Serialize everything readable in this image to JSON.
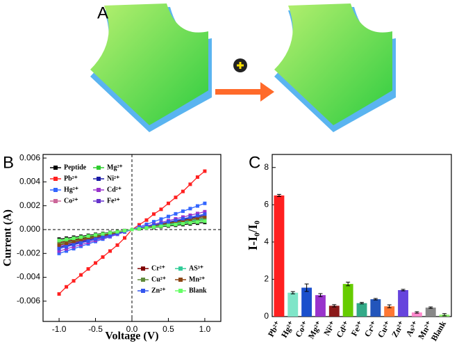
{
  "panels": [
    "A",
    "B",
    "C"
  ],
  "chart_data": [
    {
      "type": "line",
      "x_label": "Voltage (V)",
      "y_label": "Current (A)",
      "x": [
        -1,
        -0.9,
        -0.8,
        -0.7,
        -0.6,
        -0.5,
        -0.4,
        -0.3,
        -0.2,
        -0.1,
        0,
        0.1,
        0.2,
        0.3,
        0.4,
        0.5,
        0.6,
        0.7,
        0.8,
        0.9,
        1
      ],
      "xlim": [
        -1.22,
        1.22
      ],
      "xticks": [
        {
          "value": -1,
          "label": "-1.0"
        },
        -0.5,
        {
          "value": 0,
          "label": "0.0"
        },
        0.5,
        {
          "value": 1,
          "label": "1.0"
        }
      ],
      "ylim": [
        -0.0077,
        0.0063
      ],
      "yticks": [
        -0.006,
        -0.004,
        -0.002,
        {
          "value": 0,
          "label": "0.000"
        },
        0.002,
        0.004,
        0.006
      ],
      "series": [
        {
          "name": "Peptide",
          "color": "#000000",
          "values": [
            -0.0008,
            -0.00072,
            -0.00064,
            -0.00056,
            -0.00048,
            -0.0004,
            -0.00032,
            -0.00024,
            -0.00016,
            -8e-05,
            0,
            6e-05,
            0.00012,
            0.00018,
            0.00024,
            0.0003,
            0.00036,
            0.00042,
            0.00048,
            0.00054,
            0.0006
          ]
        },
        {
          "name": "Mg²⁺",
          "color": "#2ecc2e",
          "values": [
            -0.001,
            -0.0009,
            -0.0008,
            -0.0007,
            -0.0006,
            -0.0005,
            -0.0004,
            -0.0003,
            -0.0002,
            -0.0001,
            0,
            8e-05,
            0.00016,
            0.00024,
            0.00032,
            0.0004,
            0.00048,
            0.00056,
            0.00064,
            0.00072,
            0.0008
          ]
        },
        {
          "name": "Pb²⁺",
          "color": "#ff2020",
          "values": [
            -0.0054,
            -0.0048,
            -0.0043,
            -0.0038,
            -0.0033,
            -0.0028,
            -0.0023,
            -0.0018,
            -0.0013,
            -0.0007,
            0,
            0.0004,
            0.0008,
            0.0013,
            0.0017,
            0.0022,
            0.0027,
            0.0032,
            0.0038,
            0.0044,
            0.0049
          ]
        },
        {
          "name": "Ni²⁺",
          "color": "#1a1aa6",
          "values": [
            -0.0015,
            -0.00135,
            -0.0012,
            -0.00105,
            -0.0009,
            -0.00075,
            -0.0006,
            -0.00045,
            -0.0003,
            -0.00015,
            0,
            0.00012,
            0.00024,
            0.00036,
            0.00048,
            0.0006,
            0.00072,
            0.00084,
            0.00096,
            0.00108,
            0.0012
          ]
        },
        {
          "name": "Hg²⁺",
          "color": "#3366ff",
          "values": [
            -0.002,
            -0.0018,
            -0.0016,
            -0.0014,
            -0.0012,
            -0.001,
            -0.0008,
            -0.0006,
            -0.0004,
            -0.0002,
            0,
            0.00022,
            0.00044,
            0.00066,
            0.00088,
            0.0011,
            0.00132,
            0.00154,
            0.00176,
            0.00198,
            0.0022
          ]
        },
        {
          "name": "Cd²⁺",
          "color": "#9933cc",
          "values": [
            -0.0018,
            -0.00162,
            -0.00144,
            -0.00126,
            -0.00108,
            -0.0009,
            -0.00072,
            -0.00054,
            -0.00036,
            -0.00018,
            0,
            0.00015,
            0.0003,
            0.00045,
            0.0006,
            0.00075,
            0.0009,
            0.00105,
            0.0012,
            0.00135,
            0.0015
          ]
        },
        {
          "name": "Co²⁺",
          "color": "#cc6699",
          "values": [
            -0.0013,
            -0.00117,
            -0.00104,
            -0.00091,
            -0.00078,
            -0.00065,
            -0.00052,
            -0.00039,
            -0.00026,
            -0.00013,
            0,
            0.0001,
            0.0002,
            0.0003,
            0.0004,
            0.0005,
            0.0006,
            0.0007,
            0.0008,
            0.0009,
            0.001
          ]
        },
        {
          "name": "Fe³⁺",
          "color": "#6633cc",
          "values": [
            -0.0014,
            -0.00126,
            -0.00112,
            -0.00098,
            -0.00084,
            -0.0007,
            -0.00056,
            -0.00042,
            -0.00028,
            -0.00014,
            0,
            0.00011,
            0.00022,
            0.00033,
            0.00044,
            0.00055,
            0.00066,
            0.00077,
            0.00088,
            0.00099,
            0.0011
          ]
        },
        {
          "name": "Cr²⁺",
          "color": "#800000",
          "values": [
            -0.0011,
            -0.00099,
            -0.00088,
            -0.00077,
            -0.00066,
            -0.00055,
            -0.00044,
            -0.00033,
            -0.00022,
            -0.00011,
            0,
            9e-05,
            0.00018,
            0.00027,
            0.00036,
            0.00045,
            0.00054,
            0.00063,
            0.00072,
            0.00081,
            0.0009
          ]
        },
        {
          "name": "AS³⁺",
          "color": "#33cc99",
          "values": [
            -0.0012,
            -0.00108,
            -0.00096,
            -0.00084,
            -0.00072,
            -0.0006,
            -0.00048,
            -0.00036,
            -0.00024,
            -0.00012,
            0,
            9e-05,
            0.00018,
            0.00027,
            0.00036,
            0.00045,
            0.00054,
            0.00063,
            0.00072,
            0.00081,
            0.0009
          ]
        },
        {
          "name": "Cu²⁺",
          "color": "#5f8a3a",
          "values": [
            -0.0012,
            -0.00108,
            -0.00096,
            -0.00084,
            -0.00072,
            -0.0006,
            -0.00048,
            -0.00036,
            -0.00024,
            -0.00012,
            0,
            0.0001,
            0.0002,
            0.0003,
            0.0004,
            0.0005,
            0.0006,
            0.0007,
            0.0008,
            0.0009,
            0.001
          ]
        },
        {
          "name": "Mn²⁺",
          "color": "#8b4513",
          "values": [
            -0.0013,
            -0.00117,
            -0.00104,
            -0.00091,
            -0.00078,
            -0.00065,
            -0.00052,
            -0.00039,
            -0.00026,
            -0.00013,
            0,
            0.00011,
            0.00022,
            0.00033,
            0.00044,
            0.00055,
            0.00066,
            0.00077,
            0.00088,
            0.00099,
            0.0011
          ]
        },
        {
          "name": "Zn²⁺",
          "color": "#3355ee",
          "values": [
            -0.0016,
            -0.00144,
            -0.00128,
            -0.00112,
            -0.00096,
            -0.0008,
            -0.00064,
            -0.00048,
            -0.00032,
            -0.00016,
            0,
            0.00013,
            0.00026,
            0.00039,
            0.00052,
            0.00065,
            0.00078,
            0.00091,
            0.00104,
            0.00117,
            0.0013
          ]
        },
        {
          "name": "Blank",
          "color": "#66ff66",
          "values": [
            -0.0009,
            -0.00081,
            -0.00072,
            -0.00063,
            -0.00054,
            -0.00045,
            -0.00036,
            -0.00027,
            -0.00018,
            -9e-05,
            0,
            7e-05,
            0.00014,
            0.00021,
            0.00028,
            0.00035,
            0.00042,
            0.00049,
            0.00056,
            0.00063,
            0.0007
          ]
        }
      ]
    },
    {
      "type": "bar",
      "y_label": "I-I₀/I₀",
      "categories": [
        "Pb²⁺",
        "Hg²⁺",
        "Co²⁺",
        "Mg²⁺",
        "Ni²⁺",
        "Cd²⁺",
        "Fe³⁺",
        "Cr²⁺",
        "Cu²⁺",
        "Zn²⁺",
        "As³⁺",
        "Mn²⁺",
        "Blank"
      ],
      "values": [
        6.5,
        1.28,
        1.55,
        1.15,
        0.58,
        1.75,
        0.72,
        0.93,
        0.55,
        1.42,
        0.22,
        0.48,
        0.1
      ],
      "errors": [
        0.06,
        0.06,
        0.2,
        0.08,
        0.06,
        0.1,
        0.04,
        0.04,
        0.08,
        0.04,
        0.04,
        0.04,
        0.06
      ],
      "colors": [
        "#ff2020",
        "#7fe5c8",
        "#1a4fcc",
        "#9933cc",
        "#8b1a1a",
        "#66cc00",
        "#33aa88",
        "#2255bb",
        "#ff7733",
        "#6644dd",
        "#ff88cc",
        "#888888",
        "#88ee66"
      ],
      "ylim": [
        0,
        8.7
      ],
      "yticks": [
        0,
        2,
        4,
        6,
        8
      ]
    }
  ]
}
